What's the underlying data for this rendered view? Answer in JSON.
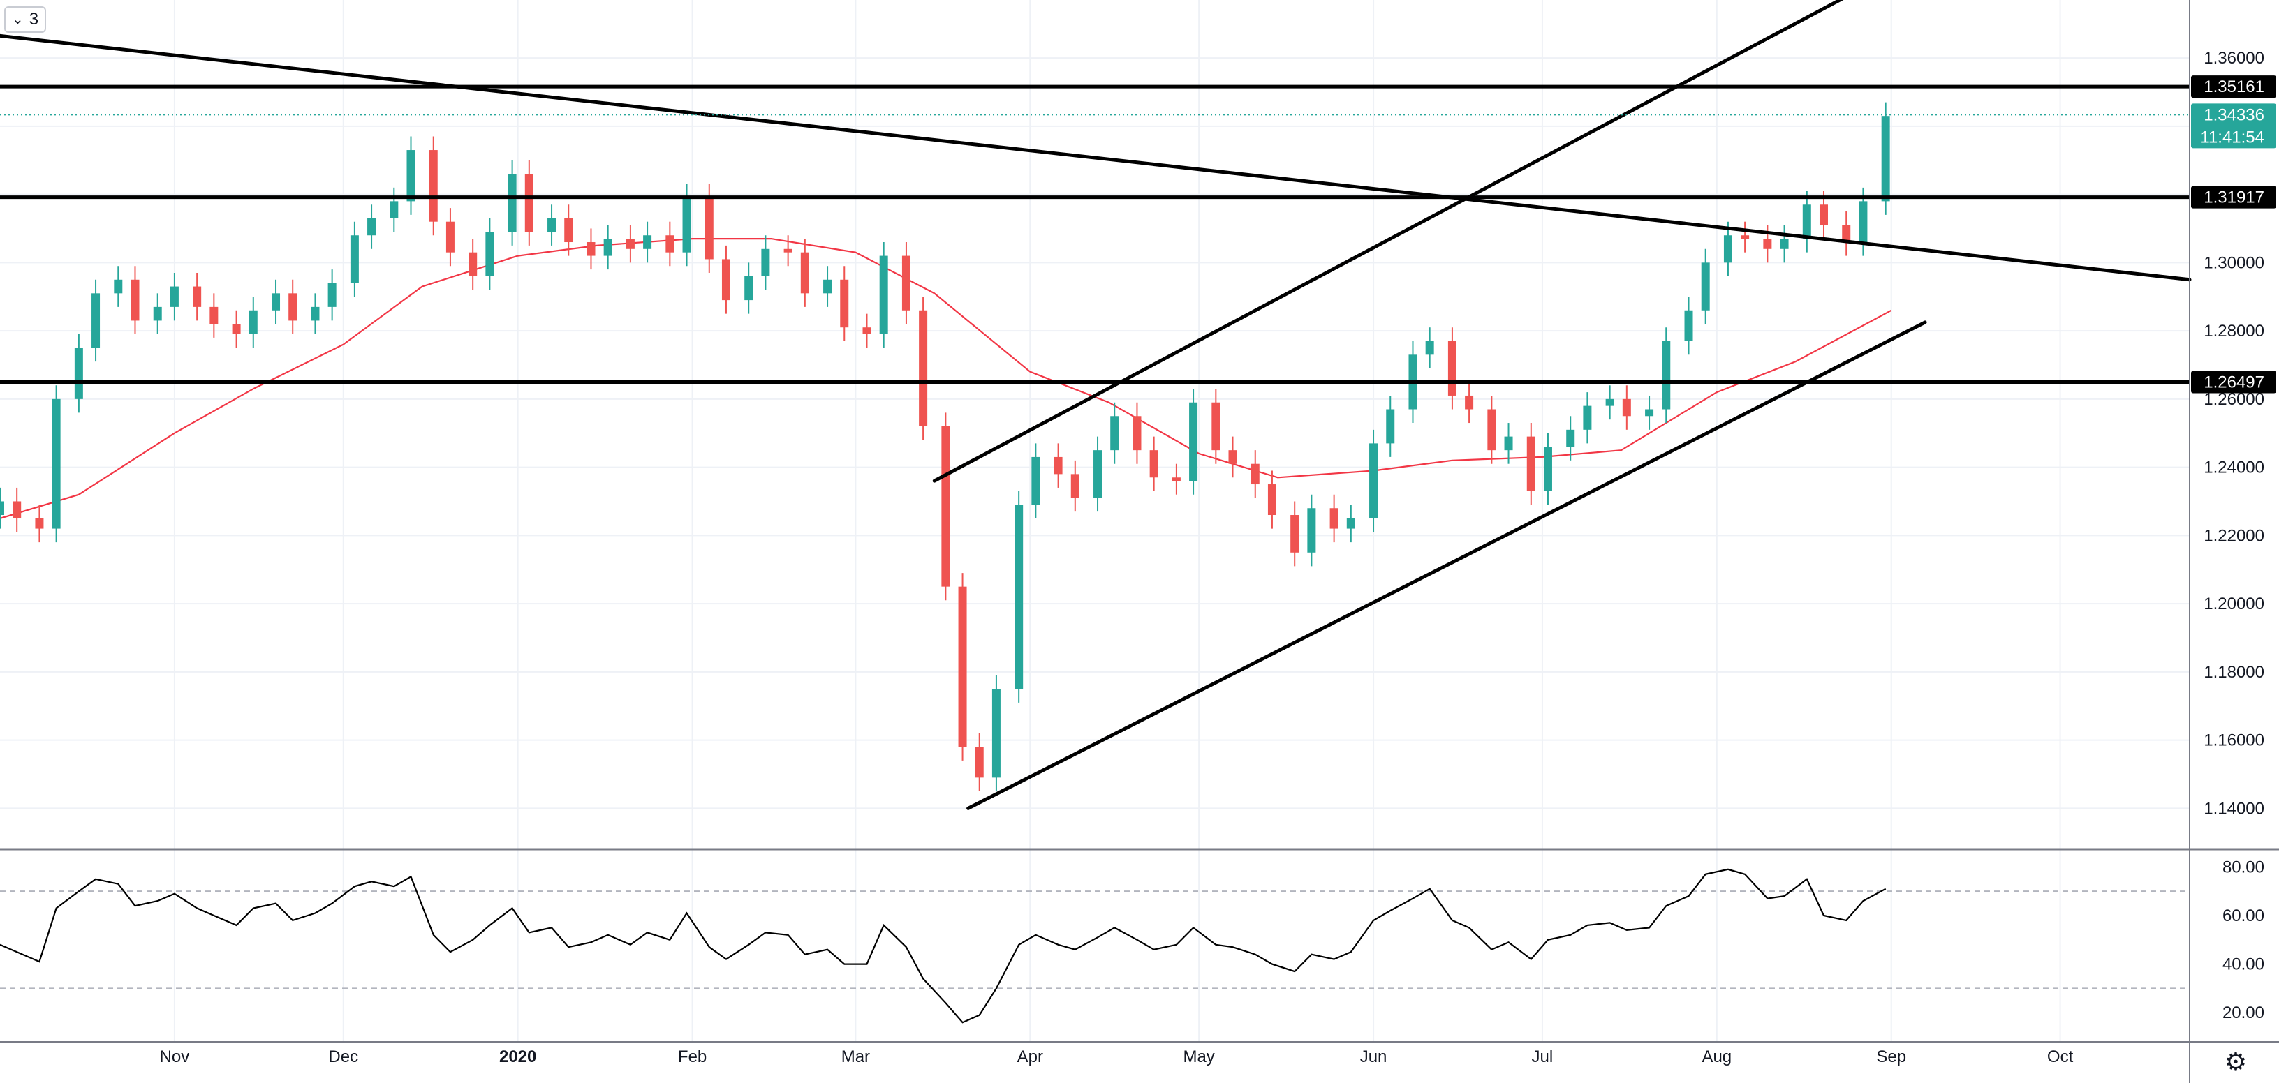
{
  "toolbar": {
    "interval_count": "3",
    "collapse_icon": "chevron-down-icon",
    "settings_icon": "gear-icon"
  },
  "colors": {
    "up_candle": "#26a69a",
    "down_candle": "#ef5350",
    "moving_average": "#f23645",
    "trend_lines": "#000000",
    "last_price_label": "#26a69a",
    "rsi_line": "#000000",
    "grid": "#eef1f6"
  },
  "chart_data": [
    {
      "type": "candlestick",
      "title": "",
      "x_ticks": [
        "Nov",
        "Dec",
        "2020",
        "Feb",
        "Mar",
        "Apr",
        "May",
        "Jun",
        "Jul",
        "Aug",
        "Sep",
        "Oct"
      ],
      "y_ticks": [
        "1.36000",
        "1.34000",
        "1.32000",
        "1.30000",
        "1.28000",
        "1.26000",
        "1.24000",
        "1.22000",
        "1.20000",
        "1.18000",
        "1.16000",
        "1.14000"
      ],
      "ylim": [
        1.128,
        1.377
      ],
      "xlim": [
        "2019-10-01",
        "2020-10-24"
      ],
      "grid": true,
      "closes": [
        [
          "2019-10-01",
          1.23
        ],
        [
          "2019-10-04",
          1.225
        ],
        [
          "2019-10-08",
          1.222
        ],
        [
          "2019-10-11",
          1.26
        ],
        [
          "2019-10-15",
          1.275
        ],
        [
          "2019-10-18",
          1.291
        ],
        [
          "2019-10-22",
          1.295
        ],
        [
          "2019-10-25",
          1.283
        ],
        [
          "2019-10-29",
          1.287
        ],
        [
          "2019-11-01",
          1.293
        ],
        [
          "2019-11-05",
          1.287
        ],
        [
          "2019-11-08",
          1.282
        ],
        [
          "2019-11-12",
          1.279
        ],
        [
          "2019-11-15",
          1.286
        ],
        [
          "2019-11-19",
          1.291
        ],
        [
          "2019-11-22",
          1.283
        ],
        [
          "2019-11-26",
          1.287
        ],
        [
          "2019-11-29",
          1.294
        ],
        [
          "2019-12-03",
          1.308
        ],
        [
          "2019-12-06",
          1.313
        ],
        [
          "2019-12-10",
          1.318
        ],
        [
          "2019-12-13",
          1.333
        ],
        [
          "2019-12-17",
          1.312
        ],
        [
          "2019-12-20",
          1.303
        ],
        [
          "2019-12-24",
          1.296
        ],
        [
          "2019-12-27",
          1.309
        ],
        [
          "2019-12-31",
          1.326
        ],
        [
          "2020-01-03",
          1.309
        ],
        [
          "2020-01-07",
          1.313
        ],
        [
          "2020-01-10",
          1.306
        ],
        [
          "2020-01-14",
          1.302
        ],
        [
          "2020-01-17",
          1.307
        ],
        [
          "2020-01-21",
          1.304
        ],
        [
          "2020-01-24",
          1.308
        ],
        [
          "2020-01-28",
          1.303
        ],
        [
          "2020-01-31",
          1.319
        ],
        [
          "2020-02-04",
          1.301
        ],
        [
          "2020-02-07",
          1.289
        ],
        [
          "2020-02-11",
          1.296
        ],
        [
          "2020-02-14",
          1.304
        ],
        [
          "2020-02-18",
          1.303
        ],
        [
          "2020-02-21",
          1.291
        ],
        [
          "2020-02-25",
          1.295
        ],
        [
          "2020-02-28",
          1.281
        ],
        [
          "2020-03-03",
          1.279
        ],
        [
          "2020-03-06",
          1.302
        ],
        [
          "2020-03-10",
          1.286
        ],
        [
          "2020-03-13",
          1.252
        ],
        [
          "2020-03-17",
          1.205
        ],
        [
          "2020-03-20",
          1.158
        ],
        [
          "2020-03-23",
          1.149
        ],
        [
          "2020-03-26",
          1.175
        ],
        [
          "2020-03-30",
          1.229
        ],
        [
          "2020-04-02",
          1.243
        ],
        [
          "2020-04-06",
          1.238
        ],
        [
          "2020-04-09",
          1.231
        ],
        [
          "2020-04-13",
          1.245
        ],
        [
          "2020-04-16",
          1.255
        ],
        [
          "2020-04-20",
          1.245
        ],
        [
          "2020-04-23",
          1.237
        ],
        [
          "2020-04-27",
          1.236
        ],
        [
          "2020-04-30",
          1.259
        ],
        [
          "2020-05-04",
          1.245
        ],
        [
          "2020-05-07",
          1.241
        ],
        [
          "2020-05-11",
          1.235
        ],
        [
          "2020-05-14",
          1.226
        ],
        [
          "2020-05-18",
          1.215
        ],
        [
          "2020-05-21",
          1.228
        ],
        [
          "2020-05-25",
          1.222
        ],
        [
          "2020-05-28",
          1.225
        ],
        [
          "2020-06-01",
          1.247
        ],
        [
          "2020-06-04",
          1.257
        ],
        [
          "2020-06-08",
          1.273
        ],
        [
          "2020-06-11",
          1.277
        ],
        [
          "2020-06-15",
          1.261
        ],
        [
          "2020-06-18",
          1.257
        ],
        [
          "2020-06-22",
          1.245
        ],
        [
          "2020-06-25",
          1.249
        ],
        [
          "2020-06-29",
          1.233
        ],
        [
          "2020-07-02",
          1.246
        ],
        [
          "2020-07-06",
          1.251
        ],
        [
          "2020-07-09",
          1.258
        ],
        [
          "2020-07-13",
          1.26
        ],
        [
          "2020-07-16",
          1.255
        ],
        [
          "2020-07-20",
          1.257
        ],
        [
          "2020-07-23",
          1.277
        ],
        [
          "2020-07-27",
          1.286
        ],
        [
          "2020-07-30",
          1.3
        ],
        [
          "2020-08-03",
          1.308
        ],
        [
          "2020-08-06",
          1.307
        ],
        [
          "2020-08-10",
          1.304
        ],
        [
          "2020-08-13",
          1.307
        ],
        [
          "2020-08-17",
          1.317
        ],
        [
          "2020-08-20",
          1.311
        ],
        [
          "2020-08-24",
          1.306
        ],
        [
          "2020-08-27",
          1.318
        ],
        [
          "2020-08-31",
          1.343
        ]
      ],
      "series": [
        {
          "name": "",
          "kind": "moving-average",
          "values": [
            [
              "2019-10-01",
              1.225
            ],
            [
              "2019-10-15",
              1.232
            ],
            [
              "2019-11-01",
              1.25
            ],
            [
              "2019-11-15",
              1.263
            ],
            [
              "2019-12-01",
              1.276
            ],
            [
              "2019-12-15",
              1.293
            ],
            [
              "2020-01-01",
              1.302
            ],
            [
              "2020-01-15",
              1.305
            ],
            [
              "2020-02-01",
              1.307
            ],
            [
              "2020-02-15",
              1.307
            ],
            [
              "2020-03-01",
              1.303
            ],
            [
              "2020-03-15",
              1.291
            ],
            [
              "2020-04-01",
              1.268
            ],
            [
              "2020-04-15",
              1.259
            ],
            [
              "2020-05-01",
              1.244
            ],
            [
              "2020-05-15",
              1.237
            ],
            [
              "2020-06-01",
              1.239
            ],
            [
              "2020-06-15",
              1.242
            ],
            [
              "2020-07-01",
              1.243
            ],
            [
              "2020-07-15",
              1.245
            ],
            [
              "2020-08-01",
              1.262
            ],
            [
              "2020-08-15",
              1.271
            ],
            [
              "2020-09-01",
              1.286
            ]
          ]
        }
      ],
      "drawings": [
        {
          "kind": "horizontal-line",
          "price": 1.35161,
          "label": "1.35161"
        },
        {
          "kind": "horizontal-line",
          "price": 1.31917,
          "label": "1.31917"
        },
        {
          "kind": "horizontal-line",
          "price": 1.26497,
          "label": "1.26497"
        },
        {
          "kind": "trend-line",
          "points": [
            [
              "2019-10-01",
              1.3665
            ],
            [
              "2020-10-24",
              1.295
            ]
          ]
        },
        {
          "kind": "trend-line",
          "points": [
            [
              "2020-03-15",
              1.236
            ],
            [
              "2020-08-24",
              1.378
            ]
          ]
        },
        {
          "kind": "trend-line",
          "points": [
            [
              "2020-03-21",
              1.14
            ],
            [
              "2020-09-07",
              1.2825
            ]
          ]
        }
      ],
      "last_price": {
        "price": 1.34336,
        "label": "1.34336",
        "countdown": "11:41:54"
      }
    },
    {
      "type": "line",
      "title": "",
      "y_ticks": [
        "80.00",
        "60.00",
        "40.00",
        "20.00"
      ],
      "ylim": [
        8,
        87
      ],
      "bands": [
        70,
        30
      ],
      "series": [
        {
          "name": "",
          "values": [
            [
              "2019-10-01",
              48
            ],
            [
              "2019-10-04",
              45
            ],
            [
              "2019-10-08",
              41
            ],
            [
              "2019-10-11",
              63
            ],
            [
              "2019-10-15",
              70
            ],
            [
              "2019-10-18",
              75
            ],
            [
              "2019-10-22",
              73
            ],
            [
              "2019-10-25",
              64
            ],
            [
              "2019-10-29",
              66
            ],
            [
              "2019-11-01",
              69
            ],
            [
              "2019-11-05",
              63
            ],
            [
              "2019-11-08",
              60
            ],
            [
              "2019-11-12",
              56
            ],
            [
              "2019-11-15",
              63
            ],
            [
              "2019-11-19",
              65
            ],
            [
              "2019-11-22",
              58
            ],
            [
              "2019-11-26",
              61
            ],
            [
              "2019-11-29",
              65
            ],
            [
              "2019-12-03",
              72
            ],
            [
              "2019-12-06",
              74
            ],
            [
              "2019-12-10",
              72
            ],
            [
              "2019-12-13",
              76
            ],
            [
              "2019-12-17",
              52
            ],
            [
              "2019-12-20",
              45
            ],
            [
              "2019-12-24",
              50
            ],
            [
              "2019-12-27",
              56
            ],
            [
              "2019-12-31",
              63
            ],
            [
              "2020-01-03",
              53
            ],
            [
              "2020-01-07",
              55
            ],
            [
              "2020-01-10",
              47
            ],
            [
              "2020-01-14",
              49
            ],
            [
              "2020-01-17",
              52
            ],
            [
              "2020-01-21",
              48
            ],
            [
              "2020-01-24",
              53
            ],
            [
              "2020-01-28",
              50
            ],
            [
              "2020-01-31",
              61
            ],
            [
              "2020-02-04",
              47
            ],
            [
              "2020-02-07",
              42
            ],
            [
              "2020-02-11",
              48
            ],
            [
              "2020-02-14",
              53
            ],
            [
              "2020-02-18",
              52
            ],
            [
              "2020-02-21",
              44
            ],
            [
              "2020-02-25",
              46
            ],
            [
              "2020-02-28",
              40
            ],
            [
              "2020-03-03",
              40
            ],
            [
              "2020-03-06",
              56
            ],
            [
              "2020-03-10",
              47
            ],
            [
              "2020-03-13",
              34
            ],
            [
              "2020-03-17",
              24
            ],
            [
              "2020-03-20",
              16
            ],
            [
              "2020-03-23",
              19
            ],
            [
              "2020-03-26",
              30
            ],
            [
              "2020-03-30",
              48
            ],
            [
              "2020-04-02",
              52
            ],
            [
              "2020-04-06",
              48
            ],
            [
              "2020-04-09",
              46
            ],
            [
              "2020-04-13",
              51
            ],
            [
              "2020-04-16",
              55
            ],
            [
              "2020-04-20",
              50
            ],
            [
              "2020-04-23",
              46
            ],
            [
              "2020-04-27",
              48
            ],
            [
              "2020-04-30",
              55
            ],
            [
              "2020-05-04",
              48
            ],
            [
              "2020-05-07",
              47
            ],
            [
              "2020-05-11",
              44
            ],
            [
              "2020-05-14",
              40
            ],
            [
              "2020-05-18",
              37
            ],
            [
              "2020-05-21",
              44
            ],
            [
              "2020-05-25",
              42
            ],
            [
              "2020-05-28",
              45
            ],
            [
              "2020-06-01",
              58
            ],
            [
              "2020-06-04",
              62
            ],
            [
              "2020-06-08",
              67
            ],
            [
              "2020-06-11",
              71
            ],
            [
              "2020-06-15",
              58
            ],
            [
              "2020-06-18",
              55
            ],
            [
              "2020-06-22",
              46
            ],
            [
              "2020-06-25",
              49
            ],
            [
              "2020-06-29",
              42
            ],
            [
              "2020-07-02",
              50
            ],
            [
              "2020-07-06",
              52
            ],
            [
              "2020-07-09",
              56
            ],
            [
              "2020-07-13",
              57
            ],
            [
              "2020-07-16",
              54
            ],
            [
              "2020-07-20",
              55
            ],
            [
              "2020-07-23",
              64
            ],
            [
              "2020-07-27",
              68
            ],
            [
              "2020-07-30",
              77
            ],
            [
              "2020-08-03",
              79
            ],
            [
              "2020-08-06",
              77
            ],
            [
              "2020-08-10",
              67
            ],
            [
              "2020-08-13",
              68
            ],
            [
              "2020-08-17",
              75
            ],
            [
              "2020-08-20",
              60
            ],
            [
              "2020-08-24",
              58
            ],
            [
              "2020-08-27",
              66
            ],
            [
              "2020-08-31",
              71
            ]
          ]
        }
      ]
    }
  ]
}
